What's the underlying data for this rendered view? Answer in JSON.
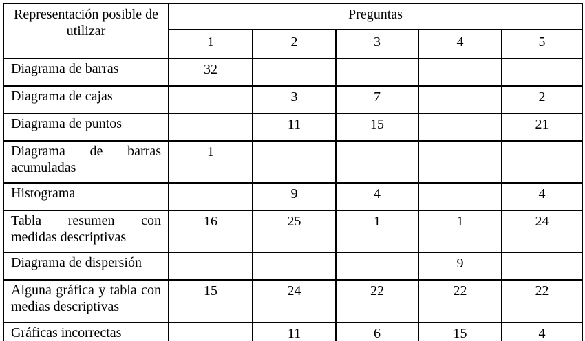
{
  "colors": {
    "border": "#000000",
    "background": "#ffffff",
    "text": "#000000"
  },
  "table": {
    "corner_header": "Representación posible de utilizar",
    "group_header": "Preguntas",
    "columns": [
      "1",
      "2",
      "3",
      "4",
      "5"
    ],
    "rows": [
      {
        "label": "Diagrama de barras",
        "values": [
          "32",
          "",
          "",
          "",
          ""
        ]
      },
      {
        "label": "Diagrama de cajas",
        "values": [
          "",
          "3",
          "7",
          "",
          "2"
        ]
      },
      {
        "label": "Diagrama de puntos",
        "values": [
          "",
          "11",
          "15",
          "",
          "21"
        ]
      },
      {
        "label": "Diagrama de barras acumuladas",
        "values": [
          "1",
          "",
          "",
          "",
          ""
        ]
      },
      {
        "label": "Histograma",
        "values": [
          "",
          "9",
          "4",
          "",
          "4"
        ]
      },
      {
        "label": "Tabla resumen con medidas descriptivas",
        "values": [
          "16",
          "25",
          "1",
          "1",
          "24"
        ]
      },
      {
        "label": "Diagrama de dispersión",
        "values": [
          "",
          "",
          "",
          "9",
          ""
        ]
      },
      {
        "label": "Alguna gráfica y tabla con medias descriptivas",
        "values": [
          "15",
          "24",
          "22",
          "22",
          "22"
        ]
      },
      {
        "label": "Gráficas incorrectas",
        "values": [
          "",
          "11",
          "6",
          "15",
          "4"
        ]
      }
    ]
  }
}
